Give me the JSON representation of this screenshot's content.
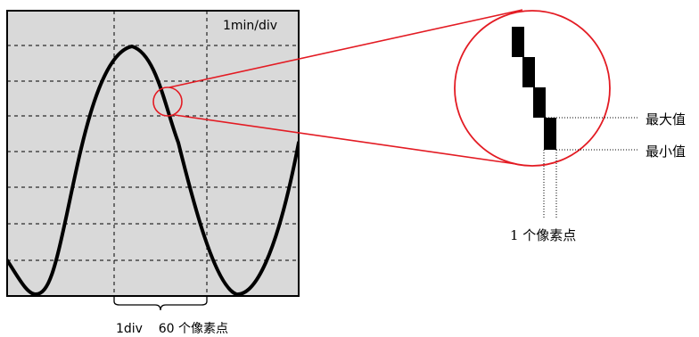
{
  "scope": {
    "scale_label": "1min/div",
    "div_caption": "1div    60 个像素点"
  },
  "zoom": {
    "max_label": "最大值",
    "min_label": "最小值",
    "pixel_caption": "1 个像素点"
  },
  "colors": {
    "screen_bg": "#d9d9d9",
    "trace": "#000000",
    "zoom_ring": "#e31b23",
    "grid": "#000000"
  }
}
